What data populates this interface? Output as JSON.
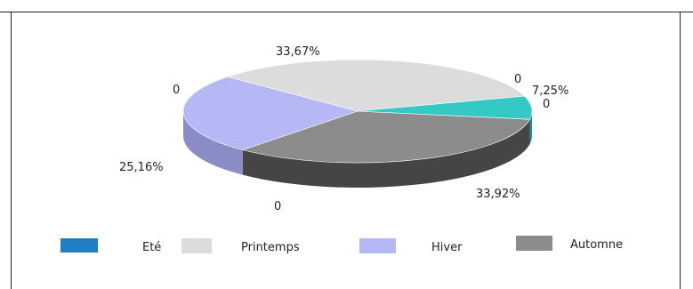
{
  "chart_data": {
    "type": "pie",
    "three_d": true,
    "legend_position": "bottom",
    "series": [
      {
        "name": "Eté",
        "value": 0,
        "label": "0",
        "color": "#1f7fc1",
        "side_color": "#155d8e"
      },
      {
        "name": "Printemps",
        "value": 33.67,
        "label": "33,67%",
        "color": "#dcdcdc",
        "side_color": "#a9a9a9"
      },
      {
        "name": "Hiver",
        "value": 25.16,
        "label": "25,16%",
        "color": "#b6b8f5",
        "side_color": "#8a8cc8"
      },
      {
        "name": "Automne",
        "value": 33.92,
        "label": "33,92%",
        "color": "#8c8c8c",
        "side_color": "#454545"
      },
      {
        "name": "",
        "value": 7.25,
        "label": "7,25%",
        "color": "#35c9c6",
        "side_color": "#1f8f8d"
      }
    ],
    "zero_labels": [
      "0",
      "0",
      "0",
      "0"
    ]
  }
}
